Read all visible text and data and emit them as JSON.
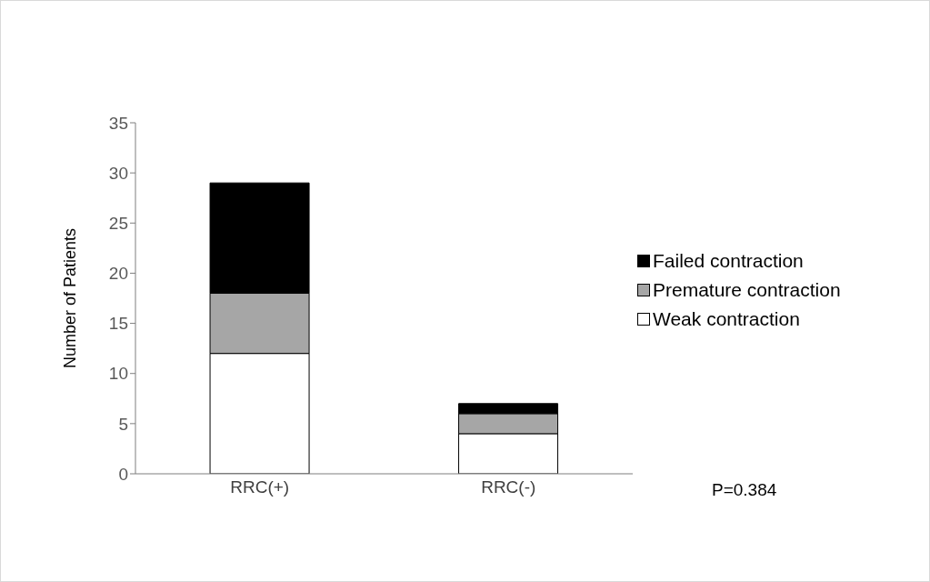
{
  "chart_data": {
    "type": "bar",
    "stacked": true,
    "ylabel": "Number of Patients",
    "categories": [
      "RRC(+)",
      "RRC(-)"
    ],
    "series": [
      {
        "name": "Weak contraction",
        "color": "#ffffff",
        "values": [
          12,
          4
        ]
      },
      {
        "name": "Premature contraction",
        "color": "#a6a6a6",
        "values": [
          6,
          2
        ]
      },
      {
        "name": "Failed contraction",
        "color": "#000000",
        "values": [
          11,
          1
        ]
      }
    ],
    "ylim": [
      0,
      35
    ],
    "yticks": [
      0,
      5,
      10,
      15,
      20,
      25,
      30,
      35
    ],
    "grid": false,
    "legend": "right",
    "annotations": [
      "P=0.384"
    ]
  }
}
